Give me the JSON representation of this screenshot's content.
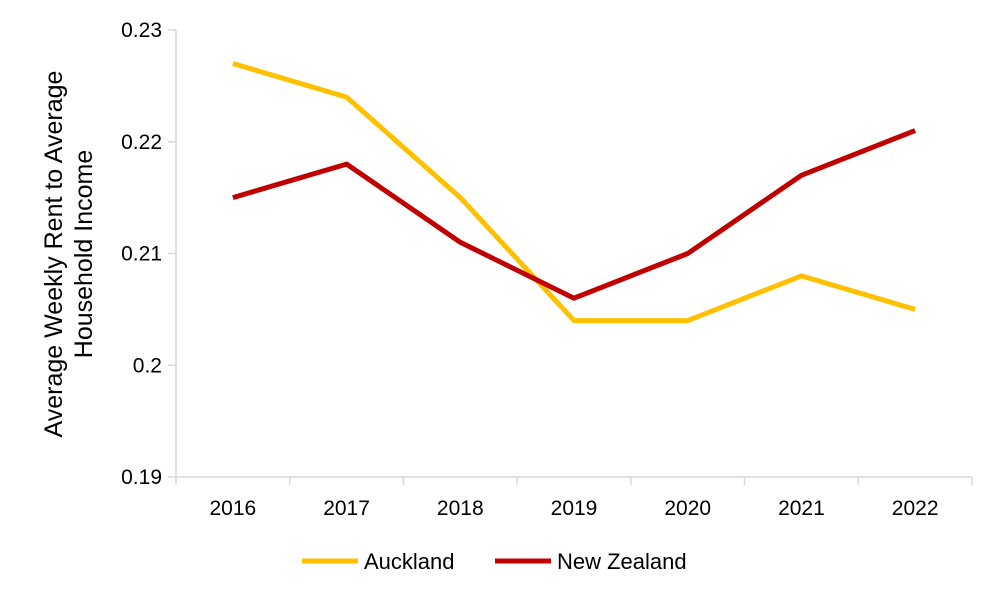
{
  "chart_data": {
    "type": "line",
    "title": "",
    "xlabel": "",
    "ylabel_lines": [
      "Average Weekly Rent to Average",
      "Household Income"
    ],
    "categories": [
      "2016",
      "2017",
      "2018",
      "2019",
      "2020",
      "2021",
      "2022"
    ],
    "ylim": [
      0.19,
      0.23
    ],
    "yticks": [
      0.19,
      0.2,
      0.21,
      0.22,
      0.23
    ],
    "ytick_labels": [
      "0.19",
      "0.2",
      "0.21",
      "0.22",
      "0.23"
    ],
    "grid": false,
    "legend_position": "bottom",
    "series": [
      {
        "name": "Auckland",
        "color": "#FFC000",
        "values": [
          0.227,
          0.224,
          0.215,
          0.204,
          0.204,
          0.208,
          0.205
        ]
      },
      {
        "name": "New Zealand",
        "color": "#C00000",
        "values": [
          0.215,
          0.218,
          0.211,
          0.206,
          0.21,
          0.217,
          0.221
        ]
      }
    ]
  }
}
